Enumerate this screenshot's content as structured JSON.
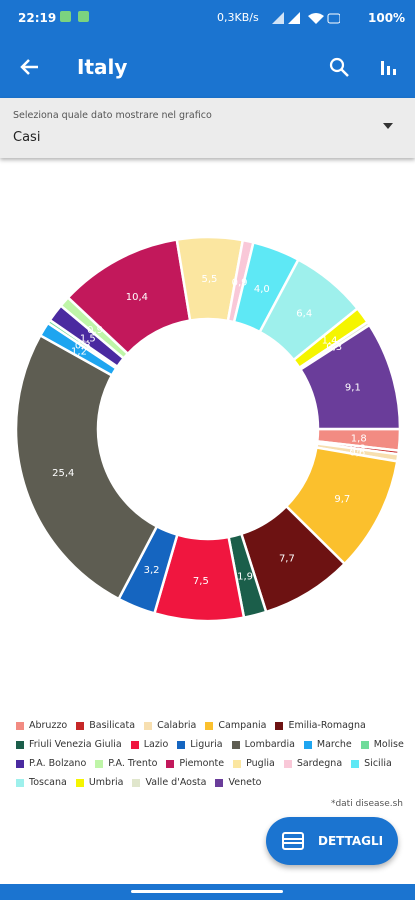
{
  "status_bar": {
    "time": "22:19",
    "speed": "0,3KB/s",
    "battery": "100%"
  },
  "app_bar": {
    "title": "Italy"
  },
  "dropdown": {
    "label": "Seleziona quale dato mostrare nel grafico",
    "value": "Casi"
  },
  "chart_data": {
    "type": "donut",
    "categories": [
      "Abruzzo",
      "Basilicata",
      "Calabria",
      "Campania",
      "Emilia-Romagna",
      "Friuli Venezia Giulia",
      "Lazio",
      "Liguria",
      "Lombardia",
      "Marche",
      "Molise",
      "P.A. Bolzano",
      "P.A. Trento",
      "Piemonte",
      "Puglia",
      "Sardegna",
      "Sicilia",
      "Toscana",
      "Umbria",
      "Valle d'Aosta",
      "Veneto"
    ],
    "values": [
      1.8,
      0.3,
      0.6,
      9.7,
      7.7,
      1.9,
      7.5,
      3.2,
      25.4,
      1.2,
      0.3,
      1.5,
      0.9,
      10.4,
      5.5,
      0.9,
      4.0,
      6.4,
      1.4,
      0.3,
      9.1
    ],
    "value_labels": [
      "1,8",
      "0,3",
      "0,6",
      "9,7",
      "7,7",
      "1,9",
      "7,5",
      "3,2",
      "25,4",
      "1,2",
      "0,3",
      "1,5",
      "0,9",
      "10,4",
      "5,5",
      "0,9",
      "4,0",
      "6,4",
      "1,4",
      "0,3",
      "9,1"
    ],
    "colors": [
      "#f28b82",
      "#c62828",
      "#f7dfb0",
      "#fbc02d",
      "#6d1212",
      "#1b5e4a",
      "#f0163f",
      "#1565c0",
      "#5e5d52",
      "#1ea5f0",
      "#6fdc9a",
      "#4a2aa0",
      "#bff5a8",
      "#c2185b",
      "#fbe6a0",
      "#f9c8d8",
      "#5ee8f5",
      "#9ef0ec",
      "#f5f500",
      "#e0e6cc",
      "#6a3d9a"
    ]
  },
  "footnote": "*dati disease.sh",
  "fab": {
    "label": "DETTAGLI"
  }
}
